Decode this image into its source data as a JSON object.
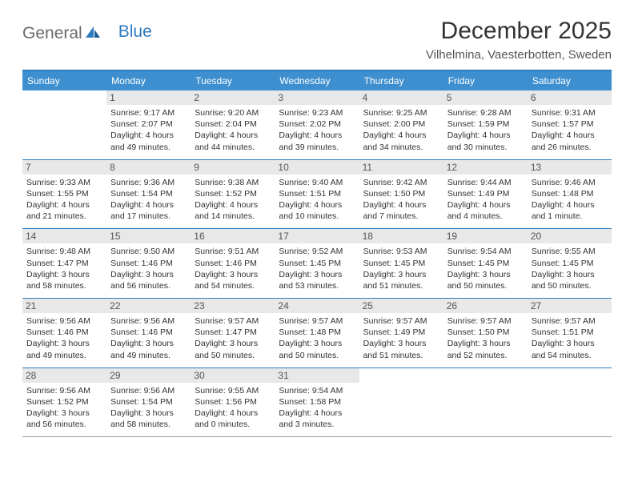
{
  "logo": {
    "word1": "General",
    "word2": "Blue"
  },
  "title": "December 2025",
  "location": "Vilhelmina, Vaesterbotten, Sweden",
  "colors": {
    "header_bg": "#3d8fcf",
    "header_text": "#ffffff",
    "border": "#2f7bbf",
    "daynum_bg": "#e8e8e8",
    "text": "#333333",
    "logo_gray": "#6a6a6a",
    "logo_blue": "#2f7bbf"
  },
  "day_names": [
    "Sunday",
    "Monday",
    "Tuesday",
    "Wednesday",
    "Thursday",
    "Friday",
    "Saturday"
  ],
  "weeks": [
    [
      {
        "day": "",
        "sunrise": "",
        "sunset": "",
        "daylight": ""
      },
      {
        "day": "1",
        "sunrise": "9:17 AM",
        "sunset": "2:07 PM",
        "daylight": "4 hours and 49 minutes."
      },
      {
        "day": "2",
        "sunrise": "9:20 AM",
        "sunset": "2:04 PM",
        "daylight": "4 hours and 44 minutes."
      },
      {
        "day": "3",
        "sunrise": "9:23 AM",
        "sunset": "2:02 PM",
        "daylight": "4 hours and 39 minutes."
      },
      {
        "day": "4",
        "sunrise": "9:25 AM",
        "sunset": "2:00 PM",
        "daylight": "4 hours and 34 minutes."
      },
      {
        "day": "5",
        "sunrise": "9:28 AM",
        "sunset": "1:59 PM",
        "daylight": "4 hours and 30 minutes."
      },
      {
        "day": "6",
        "sunrise": "9:31 AM",
        "sunset": "1:57 PM",
        "daylight": "4 hours and 26 minutes."
      }
    ],
    [
      {
        "day": "7",
        "sunrise": "9:33 AM",
        "sunset": "1:55 PM",
        "daylight": "4 hours and 21 minutes."
      },
      {
        "day": "8",
        "sunrise": "9:36 AM",
        "sunset": "1:54 PM",
        "daylight": "4 hours and 17 minutes."
      },
      {
        "day": "9",
        "sunrise": "9:38 AM",
        "sunset": "1:52 PM",
        "daylight": "4 hours and 14 minutes."
      },
      {
        "day": "10",
        "sunrise": "9:40 AM",
        "sunset": "1:51 PM",
        "daylight": "4 hours and 10 minutes."
      },
      {
        "day": "11",
        "sunrise": "9:42 AM",
        "sunset": "1:50 PM",
        "daylight": "4 hours and 7 minutes."
      },
      {
        "day": "12",
        "sunrise": "9:44 AM",
        "sunset": "1:49 PM",
        "daylight": "4 hours and 4 minutes."
      },
      {
        "day": "13",
        "sunrise": "9:46 AM",
        "sunset": "1:48 PM",
        "daylight": "4 hours and 1 minute."
      }
    ],
    [
      {
        "day": "14",
        "sunrise": "9:48 AM",
        "sunset": "1:47 PM",
        "daylight": "3 hours and 58 minutes."
      },
      {
        "day": "15",
        "sunrise": "9:50 AM",
        "sunset": "1:46 PM",
        "daylight": "3 hours and 56 minutes."
      },
      {
        "day": "16",
        "sunrise": "9:51 AM",
        "sunset": "1:46 PM",
        "daylight": "3 hours and 54 minutes."
      },
      {
        "day": "17",
        "sunrise": "9:52 AM",
        "sunset": "1:45 PM",
        "daylight": "3 hours and 53 minutes."
      },
      {
        "day": "18",
        "sunrise": "9:53 AM",
        "sunset": "1:45 PM",
        "daylight": "3 hours and 51 minutes."
      },
      {
        "day": "19",
        "sunrise": "9:54 AM",
        "sunset": "1:45 PM",
        "daylight": "3 hours and 50 minutes."
      },
      {
        "day": "20",
        "sunrise": "9:55 AM",
        "sunset": "1:45 PM",
        "daylight": "3 hours and 50 minutes."
      }
    ],
    [
      {
        "day": "21",
        "sunrise": "9:56 AM",
        "sunset": "1:46 PM",
        "daylight": "3 hours and 49 minutes."
      },
      {
        "day": "22",
        "sunrise": "9:56 AM",
        "sunset": "1:46 PM",
        "daylight": "3 hours and 49 minutes."
      },
      {
        "day": "23",
        "sunrise": "9:57 AM",
        "sunset": "1:47 PM",
        "daylight": "3 hours and 50 minutes."
      },
      {
        "day": "24",
        "sunrise": "9:57 AM",
        "sunset": "1:48 PM",
        "daylight": "3 hours and 50 minutes."
      },
      {
        "day": "25",
        "sunrise": "9:57 AM",
        "sunset": "1:49 PM",
        "daylight": "3 hours and 51 minutes."
      },
      {
        "day": "26",
        "sunrise": "9:57 AM",
        "sunset": "1:50 PM",
        "daylight": "3 hours and 52 minutes."
      },
      {
        "day": "27",
        "sunrise": "9:57 AM",
        "sunset": "1:51 PM",
        "daylight": "3 hours and 54 minutes."
      }
    ],
    [
      {
        "day": "28",
        "sunrise": "9:56 AM",
        "sunset": "1:52 PM",
        "daylight": "3 hours and 56 minutes."
      },
      {
        "day": "29",
        "sunrise": "9:56 AM",
        "sunset": "1:54 PM",
        "daylight": "3 hours and 58 minutes."
      },
      {
        "day": "30",
        "sunrise": "9:55 AM",
        "sunset": "1:56 PM",
        "daylight": "4 hours and 0 minutes."
      },
      {
        "day": "31",
        "sunrise": "9:54 AM",
        "sunset": "1:58 PM",
        "daylight": "4 hours and 3 minutes."
      },
      {
        "day": "",
        "sunrise": "",
        "sunset": "",
        "daylight": ""
      },
      {
        "day": "",
        "sunrise": "",
        "sunset": "",
        "daylight": ""
      },
      {
        "day": "",
        "sunrise": "",
        "sunset": "",
        "daylight": ""
      }
    ]
  ],
  "labels": {
    "sunrise": "Sunrise: ",
    "sunset": "Sunset: ",
    "daylight": "Daylight: "
  }
}
